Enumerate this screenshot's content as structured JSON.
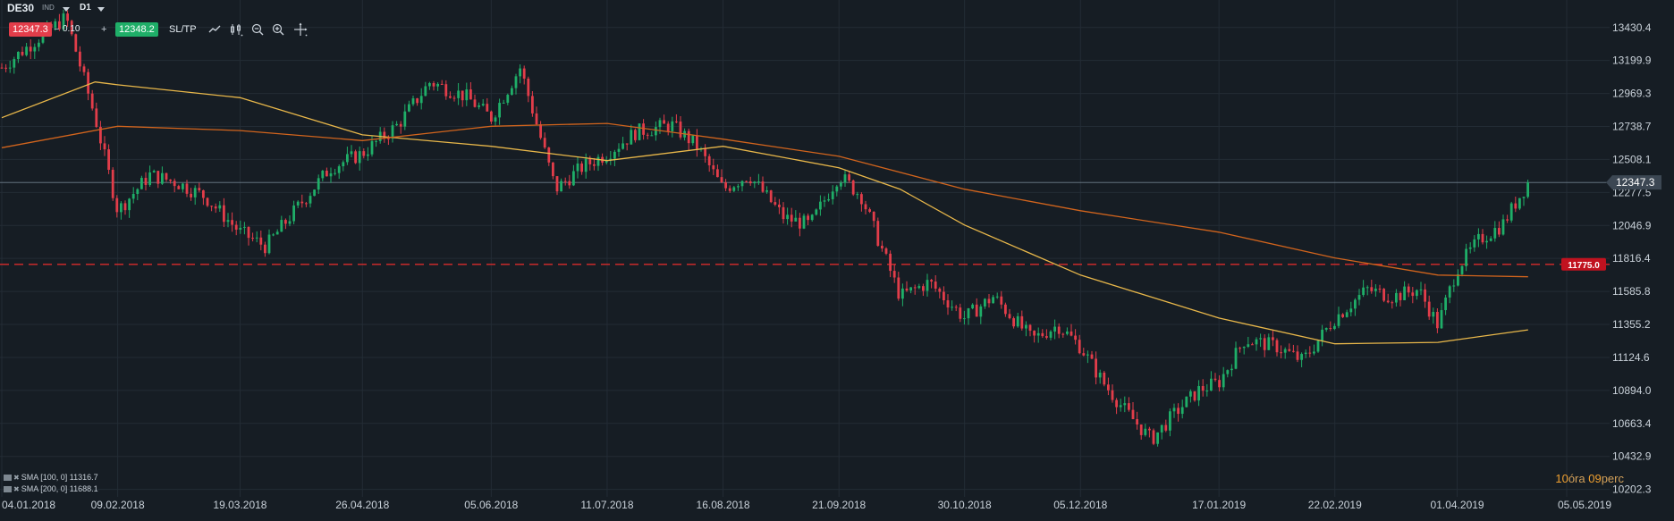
{
  "header": {
    "symbol": "DE30",
    "symbol_type": "IND",
    "timeframe": "D1",
    "bid": "12347.3",
    "ask": "12348.2",
    "minus": "−",
    "plus": "+",
    "spread": "0.10",
    "sltp_label": "SL/TP"
  },
  "toolbar": {
    "icons": [
      "line-chart-icon",
      "candles-icon",
      "zoom-out-icon",
      "zoom-in-icon",
      "crosshair-icon"
    ]
  },
  "legend": {
    "items": [
      {
        "label": "SMA [100, 0] 11316.7",
        "color": "#e8b74a"
      },
      {
        "label": "SMA [200, 0] 11688.1",
        "color": "#d1641d"
      }
    ]
  },
  "timer": {
    "hours": "10",
    "hours_label": "óra",
    "minutes": "09",
    "minutes_label": "perc"
  },
  "colors": {
    "background": "#161d24",
    "grid": "#232c35",
    "up": "#1fae68",
    "down": "#e23d4a",
    "sma100": "#e8b74a",
    "sma200": "#d1641d",
    "level_line": "#d92b2b"
  },
  "chart_data": {
    "type": "candlestick",
    "title": "",
    "xlabel": "",
    "ylabel": "",
    "ylim": [
      10150,
      13560
    ],
    "y_ticks": [
      10202.3,
      10432.9,
      10663.4,
      10894.0,
      11124.6,
      11355.2,
      11585.8,
      11816.4,
      12046.9,
      12277.5,
      12508.1,
      12738.7,
      12969.3,
      13199.9,
      13430.4
    ],
    "x_ticks": [
      "04.01.2018",
      "09.02.2018",
      "19.03.2018",
      "26.04.2018",
      "05.06.2018",
      "11.07.2018",
      "16.08.2018",
      "21.09.2018",
      "30.10.2018",
      "05.12.2018",
      "17.01.2019",
      "22.02.2019",
      "01.04.2019",
      "05.05.2019"
    ],
    "current_price": "12347.3",
    "level_price": "11775.0",
    "price_path": [
      [
        "04.01.2018",
        13150
      ],
      [
        "15.01.2018",
        13350
      ],
      [
        "24.01.2018",
        13500
      ],
      [
        "02.02.2018",
        12800
      ],
      [
        "09.02.2018",
        12150
      ],
      [
        "19.02.2018",
        12400
      ],
      [
        "27.02.2018",
        12350
      ],
      [
        "08.03.2018",
        12250
      ],
      [
        "19.03.2018",
        12000
      ],
      [
        "27.03.2018",
        11900
      ],
      [
        "05.04.2018",
        12150
      ],
      [
        "16.04.2018",
        12450
      ],
      [
        "26.04.2018",
        12550
      ],
      [
        "07.05.2018",
        12750
      ],
      [
        "17.05.2018",
        13050
      ],
      [
        "28.05.2018",
        12950
      ],
      [
        "05.06.2018",
        12800
      ],
      [
        "14.06.2018",
        13150
      ],
      [
        "25.06.2018",
        12300
      ],
      [
        "03.07.2018",
        12450
      ],
      [
        "11.07.2018",
        12550
      ],
      [
        "20.07.2018",
        12700
      ],
      [
        "31.07.2018",
        12750
      ],
      [
        "08.08.2018",
        12600
      ],
      [
        "16.08.2018",
        12300
      ],
      [
        "24.08.2018",
        12400
      ],
      [
        "04.09.2018",
        12100
      ],
      [
        "12.09.2018",
        12050
      ],
      [
        "21.09.2018",
        12400
      ],
      [
        "28.09.2018",
        12250
      ],
      [
        "10.10.2018",
        11550
      ],
      [
        "19.10.2018",
        11650
      ],
      [
        "30.10.2018",
        11400
      ],
      [
        "08.11.2018",
        11550
      ],
      [
        "20.11.2018",
        11250
      ],
      [
        "28.11.2018",
        11350
      ],
      [
        "05.12.2018",
        11200
      ],
      [
        "12.12.2018",
        10950
      ],
      [
        "19.12.2018",
        10750
      ],
      [
        "27.12.2018",
        10550
      ],
      [
        "04.01.2019",
        10750
      ],
      [
        "11.01.2019",
        10900
      ],
      [
        "17.01.2019",
        10950
      ],
      [
        "25.01.2019",
        11250
      ],
      [
        "04.02.2019",
        11200
      ],
      [
        "12.02.2019",
        11100
      ],
      [
        "22.02.2019",
        11400
      ],
      [
        "04.03.2019",
        11600
      ],
      [
        "12.03.2019",
        11550
      ],
      [
        "20.03.2019",
        11600
      ],
      [
        "26.03.2019",
        11350
      ],
      [
        "01.04.2019",
        11750
      ],
      [
        "08.04.2019",
        11950
      ],
      [
        "15.04.2019",
        12050
      ],
      [
        "23.04.2019",
        12347
      ]
    ],
    "series": [
      {
        "name": "SMA [100, 0] 11316.7",
        "type": "line",
        "points": [
          [
            "04.01.2018",
            12800
          ],
          [
            "02.02.2018",
            13050
          ],
          [
            "09.02.2018",
            13030
          ],
          [
            "19.03.2018",
            12940
          ],
          [
            "26.04.2018",
            12680
          ],
          [
            "05.06.2018",
            12600
          ],
          [
            "11.07.2018",
            12500
          ],
          [
            "16.08.2018",
            12600
          ],
          [
            "21.09.2018",
            12450
          ],
          [
            "10.10.2018",
            12300
          ],
          [
            "30.10.2018",
            12050
          ],
          [
            "05.12.2018",
            11700
          ],
          [
            "17.01.2019",
            11400
          ],
          [
            "22.02.2019",
            11220
          ],
          [
            "26.03.2019",
            11230
          ],
          [
            "23.04.2019",
            11317
          ]
        ]
      },
      {
        "name": "SMA [200, 0] 11688.1",
        "type": "line",
        "points": [
          [
            "04.01.2018",
            12590
          ],
          [
            "09.02.2018",
            12740
          ],
          [
            "19.03.2018",
            12710
          ],
          [
            "26.04.2018",
            12640
          ],
          [
            "05.06.2018",
            12740
          ],
          [
            "11.07.2018",
            12760
          ],
          [
            "16.08.2018",
            12650
          ],
          [
            "21.09.2018",
            12530
          ],
          [
            "30.10.2018",
            12300
          ],
          [
            "05.12.2018",
            12150
          ],
          [
            "17.01.2019",
            12000
          ],
          [
            "22.02.2019",
            11820
          ],
          [
            "26.03.2019",
            11700
          ],
          [
            "23.04.2019",
            11688
          ]
        ]
      }
    ],
    "grid": true,
    "legend_position": "bottom-left"
  }
}
